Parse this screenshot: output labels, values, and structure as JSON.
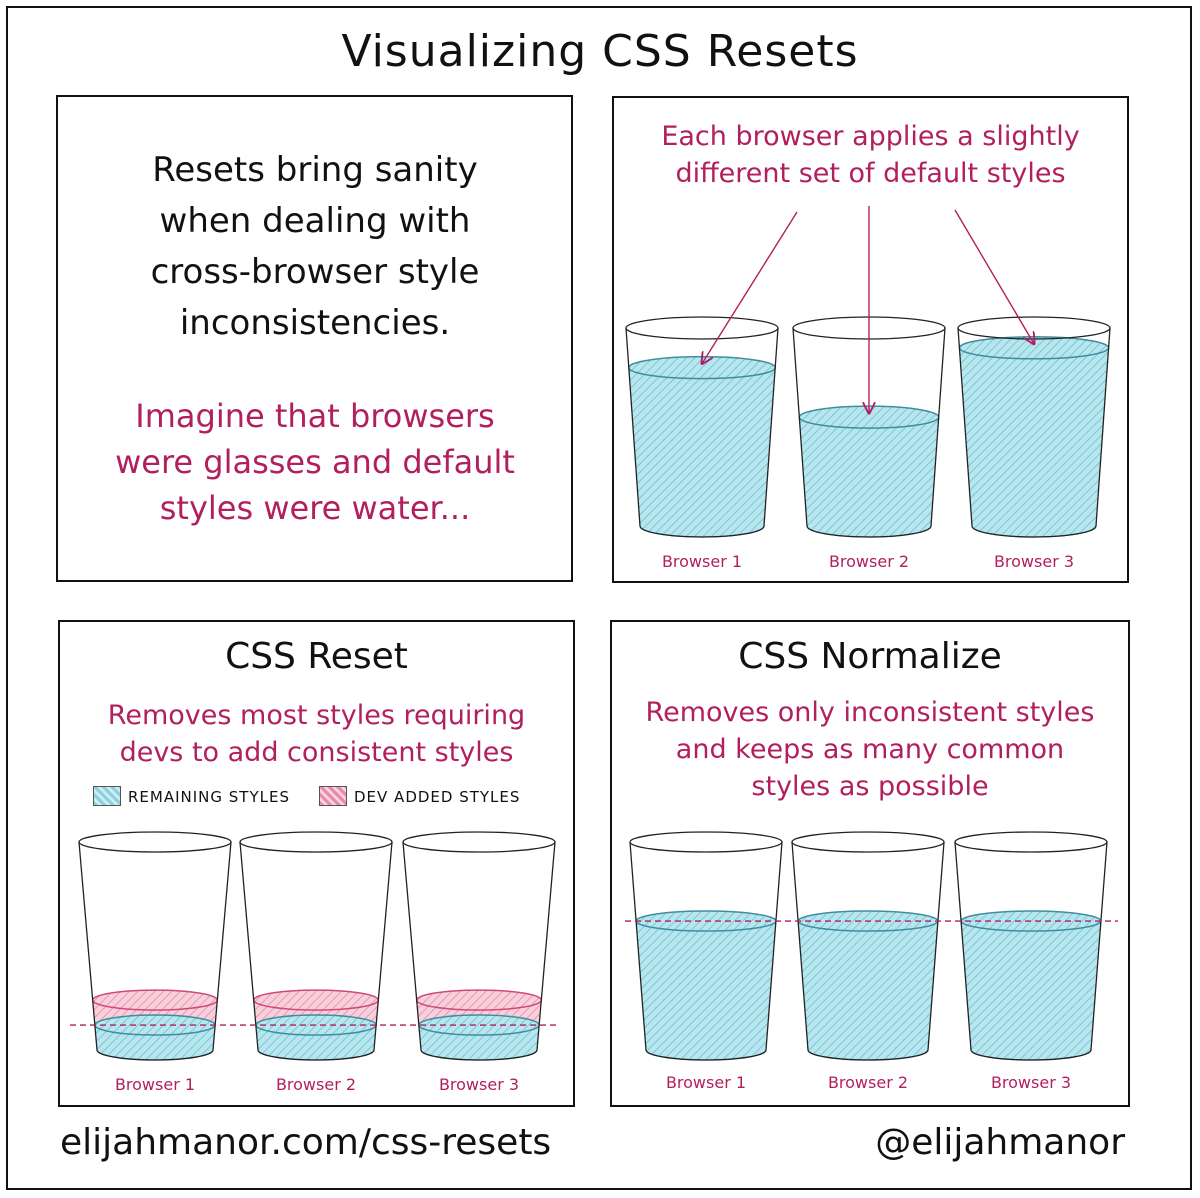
{
  "title": "Visualizing CSS Resets",
  "intro": {
    "line1": "Resets bring sanity",
    "line2": "when dealing with",
    "line3": "cross-browser style",
    "line4": "inconsistencies.",
    "line5": "Imagine that browsers",
    "line6": "were glasses and default",
    "line7": "styles were water..."
  },
  "defaults_panel": {
    "line1": "Each browser applies a slightly",
    "line2": "different set of default styles",
    "glasses": [
      {
        "label": "Browser 1",
        "level": 0.8
      },
      {
        "label": "Browser 2",
        "level": 0.55
      },
      {
        "label": "Browser 3",
        "level": 0.9
      }
    ]
  },
  "reset_panel": {
    "title": "CSS Reset",
    "line1": "Removes most styles requiring",
    "line2": "devs to add consistent styles",
    "legend_remaining": "REMAINING STYLES",
    "legend_dev": "DEV ADDED STYLES",
    "glasses": [
      {
        "label": "Browser 1",
        "remaining": 0.12,
        "dev_added": 0.12
      },
      {
        "label": "Browser 2",
        "remaining": 0.12,
        "dev_added": 0.12
      },
      {
        "label": "Browser 3",
        "remaining": 0.12,
        "dev_added": 0.12
      }
    ]
  },
  "normalize_panel": {
    "title": "CSS Normalize",
    "line1": "Removes only inconsistent styles",
    "line2": "and keeps as many common",
    "line3": "styles as possible",
    "glasses": [
      {
        "label": "Browser 1",
        "level": 0.62
      },
      {
        "label": "Browser 2",
        "level": 0.62
      },
      {
        "label": "Browser 3",
        "level": 0.62
      }
    ]
  },
  "footer": {
    "url": "elijahmanor.com/css-resets",
    "handle": "@elijahmanor"
  },
  "colors": {
    "accent": "#b21f5e",
    "water": "#a9dfe8",
    "water_edge": "#3f8ea0",
    "dev_added": "#f2b8c9",
    "ink": "#111111"
  }
}
